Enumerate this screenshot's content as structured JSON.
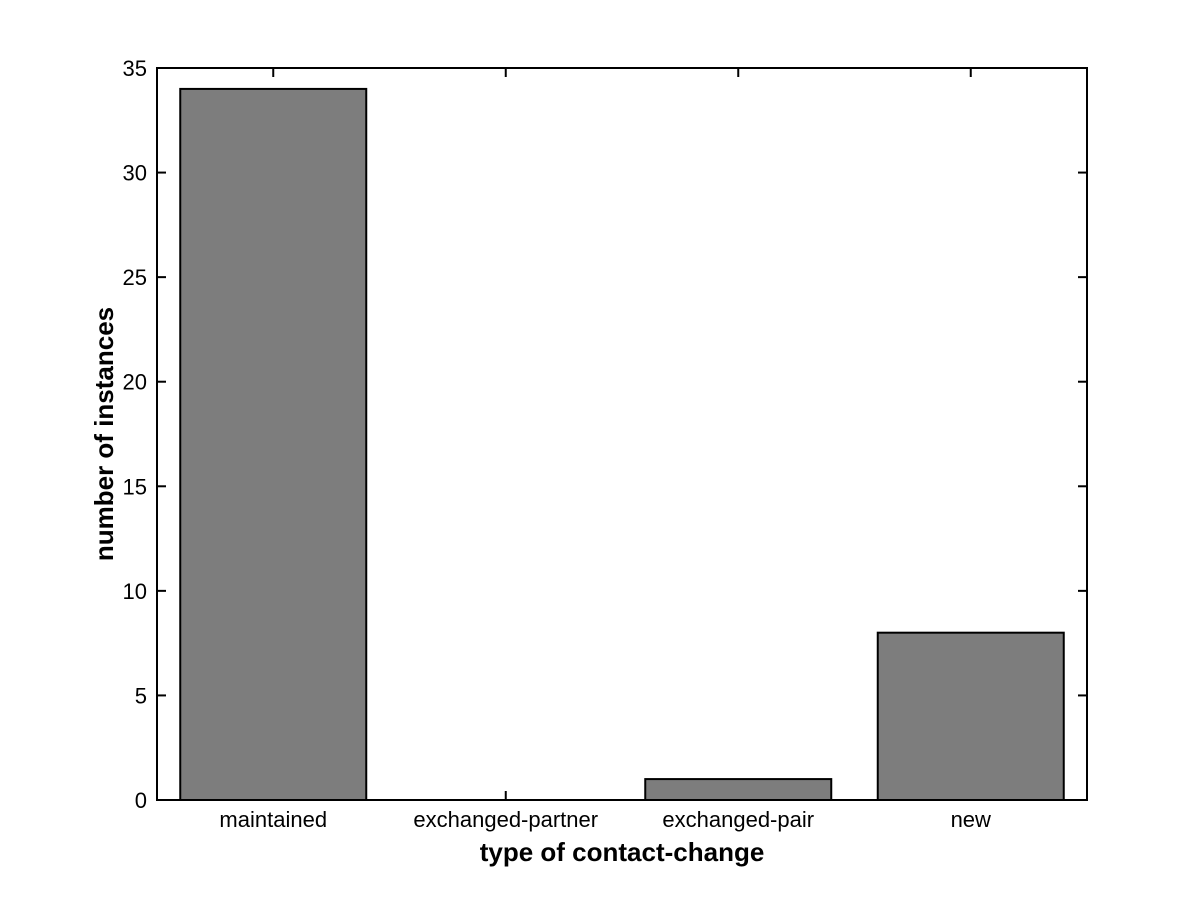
{
  "figure": {
    "background": "#ffffff"
  },
  "chart_data": {
    "type": "bar",
    "categories": [
      "maintained",
      "exchanged-partner",
      "exchanged-pair",
      "new"
    ],
    "values": [
      34,
      0,
      1,
      8
    ],
    "title": "",
    "xlabel": "type of contact-change",
    "ylabel": "number of instances",
    "ylim": [
      0,
      35
    ],
    "yticks": [
      0,
      5,
      10,
      15,
      20,
      25,
      30,
      35
    ],
    "bar_color": "#7d7d7d",
    "bar_edge_color": "#000000",
    "axis_color": "#000000",
    "text_color": "#000000",
    "bar_width_fraction": 0.8,
    "grid": false,
    "legend": null
  }
}
